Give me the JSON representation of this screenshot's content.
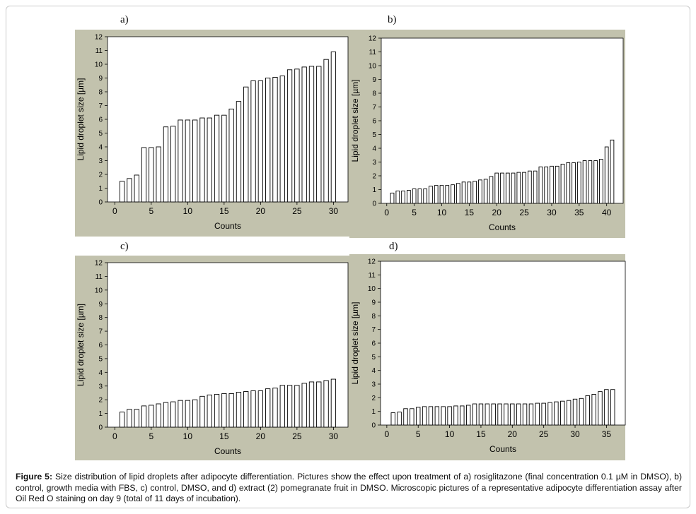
{
  "caption": {
    "label": "Figure 5:",
    "text": "Size distribution of lipid droplets after adipocyte differentiation. Pictures show the effect upon treatment of a) rosiglitazone (final concentration 0.1 µM in DMSO), b) control, growth media with FBS, c) control, DMSO, and d) extract (2) pomegranate fruit in DMSO. Microscopic pictures of a representative adipocyte differentiation assay after Oil Red O staining on day 9 (total of 11 days of incubation)."
  },
  "colors": {
    "panel_background": "#c2c2ad",
    "plot_area": "#ffffff",
    "bar_fill": "#ffffff",
    "bar_stroke": "#000000"
  },
  "chart_data": [
    {
      "panel": "a)",
      "type": "bar",
      "xlabel": "Counts",
      "ylabel": "Lipid droplet size [µm]",
      "xlim": [
        -1,
        32
      ],
      "ylim": [
        0,
        12
      ],
      "xticks": [
        0,
        5,
        10,
        15,
        20,
        25,
        30
      ],
      "yticks": [
        0,
        1,
        2,
        3,
        4,
        5,
        6,
        7,
        8,
        9,
        10,
        11,
        12
      ],
      "grid": false,
      "legend": "none",
      "x": [
        1,
        2,
        3,
        4,
        5,
        6,
        7,
        8,
        9,
        10,
        11,
        12,
        13,
        14,
        15,
        16,
        17,
        18,
        19,
        20,
        21,
        22,
        23,
        24,
        25,
        26,
        27,
        28,
        29,
        30
      ],
      "values": [
        1.5,
        1.7,
        1.95,
        3.95,
        3.95,
        4.0,
        5.45,
        5.5,
        5.95,
        5.95,
        5.95,
        6.1,
        6.1,
        6.3,
        6.3,
        6.75,
        7.3,
        8.35,
        8.8,
        8.8,
        9.0,
        9.05,
        9.15,
        9.6,
        9.65,
        9.8,
        9.85,
        9.85,
        10.35,
        10.9
      ]
    },
    {
      "panel": "b)",
      "type": "bar",
      "xlabel": "Counts",
      "ylabel": "Lipid droplet size [µm]",
      "xlim": [
        -1,
        43
      ],
      "ylim": [
        0,
        12
      ],
      "xticks": [
        0,
        5,
        10,
        15,
        20,
        25,
        30,
        35,
        40
      ],
      "yticks": [
        0,
        1,
        2,
        3,
        4,
        5,
        6,
        7,
        8,
        9,
        10,
        11,
        12
      ],
      "grid": false,
      "legend": "none",
      "x": [
        1,
        2,
        3,
        4,
        5,
        6,
        7,
        8,
        9,
        10,
        11,
        12,
        13,
        14,
        15,
        16,
        17,
        18,
        19,
        20,
        21,
        22,
        23,
        24,
        25,
        26,
        27,
        28,
        29,
        30,
        31,
        32,
        33,
        34,
        35,
        36,
        37,
        38,
        39,
        40,
        41
      ],
      "values": [
        0.75,
        0.9,
        0.9,
        0.95,
        1.05,
        1.05,
        1.05,
        1.25,
        1.3,
        1.3,
        1.3,
        1.35,
        1.45,
        1.55,
        1.55,
        1.6,
        1.7,
        1.75,
        1.95,
        2.2,
        2.2,
        2.2,
        2.2,
        2.25,
        2.25,
        2.35,
        2.35,
        2.65,
        2.65,
        2.7,
        2.7,
        2.85,
        2.95,
        2.95,
        3.0,
        3.1,
        3.1,
        3.1,
        3.2,
        4.1,
        4.6
      ]
    },
    {
      "panel": "c)",
      "type": "bar",
      "xlabel": "Counts",
      "ylabel": "Lipid droplet size [µm]",
      "xlim": [
        -1,
        32
      ],
      "ylim": [
        0,
        12
      ],
      "xticks": [
        0,
        5,
        10,
        15,
        20,
        25,
        30
      ],
      "yticks": [
        0,
        1,
        2,
        3,
        4,
        5,
        6,
        7,
        8,
        9,
        10,
        11,
        12
      ],
      "grid": false,
      "legend": "none",
      "x": [
        1,
        2,
        3,
        4,
        5,
        6,
        7,
        8,
        9,
        10,
        11,
        12,
        13,
        14,
        15,
        16,
        17,
        18,
        19,
        20,
        21,
        22,
        23,
        24,
        25,
        26,
        27,
        28,
        29,
        30
      ],
      "values": [
        1.1,
        1.3,
        1.3,
        1.55,
        1.6,
        1.7,
        1.8,
        1.85,
        1.95,
        1.95,
        2.0,
        2.25,
        2.35,
        2.4,
        2.45,
        2.45,
        2.55,
        2.6,
        2.65,
        2.65,
        2.8,
        2.85,
        3.05,
        3.05,
        3.05,
        3.2,
        3.3,
        3.3,
        3.4,
        3.5
      ]
    },
    {
      "panel": "d)",
      "type": "bar",
      "xlabel": "Counts",
      "ylabel": "Lipid droplet size [µm]",
      "xlim": [
        -1,
        38
      ],
      "ylim": [
        0,
        12
      ],
      "xticks": [
        0,
        5,
        10,
        15,
        20,
        25,
        30,
        35
      ],
      "yticks": [
        0,
        1,
        2,
        3,
        4,
        5,
        6,
        7,
        8,
        9,
        10,
        11,
        12
      ],
      "grid": false,
      "legend": "none",
      "x": [
        1,
        2,
        3,
        4,
        5,
        6,
        7,
        8,
        9,
        10,
        11,
        12,
        13,
        14,
        15,
        16,
        17,
        18,
        19,
        20,
        21,
        22,
        23,
        24,
        25,
        26,
        27,
        28,
        29,
        30,
        31,
        32,
        33,
        34,
        35,
        36
      ],
      "values": [
        0.9,
        0.95,
        1.2,
        1.2,
        1.3,
        1.35,
        1.35,
        1.35,
        1.35,
        1.35,
        1.4,
        1.4,
        1.45,
        1.55,
        1.55,
        1.55,
        1.55,
        1.55,
        1.55,
        1.55,
        1.55,
        1.55,
        1.55,
        1.6,
        1.6,
        1.65,
        1.7,
        1.75,
        1.8,
        1.9,
        1.95,
        2.15,
        2.25,
        2.45,
        2.6,
        2.6
      ]
    }
  ]
}
